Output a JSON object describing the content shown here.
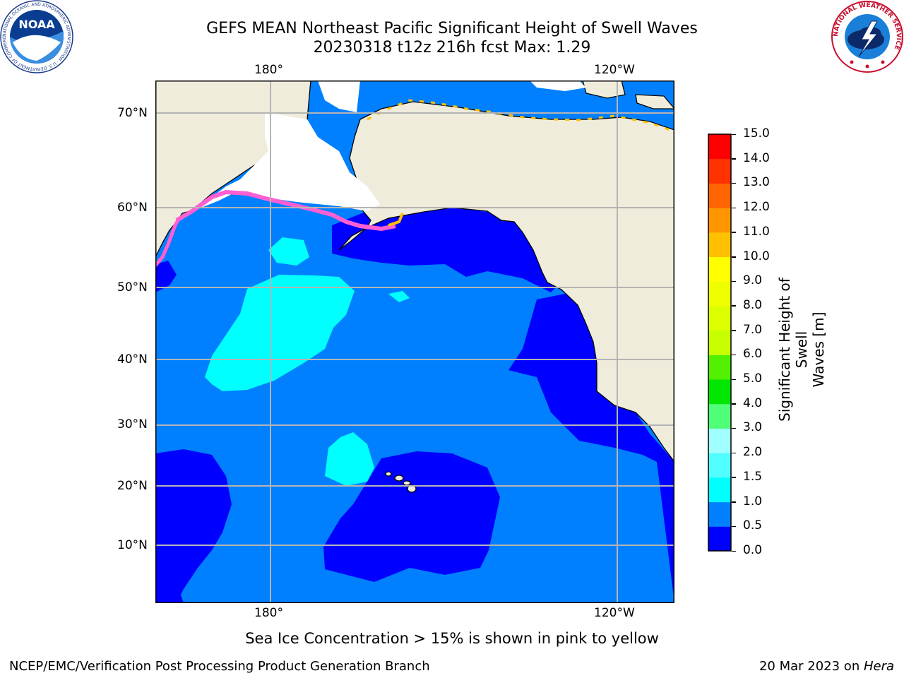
{
  "header": {
    "title_line1": "GEFS MEAN Northeast Pacific Significant Height of Swell Waves",
    "title_line2": "20230318 t12z 216h fcst   Max: 1.29"
  },
  "logos": {
    "left": {
      "text": "NOAA",
      "ring_text": "NATIONAL OCEANIC AND ATMOSPHERIC ADMINISTRATION · U.S. DEPARTMENT OF COMMERCE"
    },
    "right": {
      "ring_text": "NATIONAL WEATHER SERVICE"
    }
  },
  "map": {
    "lon_labels_top": [
      "180°",
      "120°W"
    ],
    "lon_labels_bottom": [
      "180°",
      "120°W"
    ],
    "lat_labels": [
      "70°N",
      "60°N",
      "50°N",
      "40°N",
      "30°N",
      "20°N",
      "10°N"
    ],
    "colors": {
      "land": "#efecdc",
      "ice_free": "#ffffff",
      "grid": "#b4b4b4",
      "ice_edge": "#ff5fd2",
      "ice_yellow": "#ffc000"
    }
  },
  "colorbar": {
    "label": "Significant Height of Swell Waves [m]",
    "label_line1": "Significant Height of Swell",
    "label_line2": "Waves [m]",
    "ticks": [
      "15.0",
      "14.0",
      "13.0",
      "12.0",
      "11.0",
      "10.0",
      "9.0",
      "8.0",
      "7.0",
      "6.0",
      "5.0",
      "4.0",
      "3.0",
      "2.0",
      "1.5",
      "1.0",
      "0.5",
      "0.0"
    ],
    "bins": [
      {
        "lo": 0.0,
        "hi": 0.5,
        "color": "#0000ff"
      },
      {
        "lo": 0.5,
        "hi": 1.0,
        "color": "#0080ff"
      },
      {
        "lo": 1.0,
        "hi": 1.5,
        "color": "#00ffff"
      },
      {
        "lo": 1.5,
        "hi": 2.0,
        "color": "#50ffff"
      },
      {
        "lo": 2.0,
        "hi": 3.0,
        "color": "#a0ffff"
      },
      {
        "lo": 3.0,
        "hi": 4.0,
        "color": "#50ff78"
      },
      {
        "lo": 4.0,
        "hi": 5.0,
        "color": "#00e600"
      },
      {
        "lo": 5.0,
        "hi": 6.0,
        "color": "#50f000"
      },
      {
        "lo": 6.0,
        "hi": 7.0,
        "color": "#c8ff00"
      },
      {
        "lo": 7.0,
        "hi": 8.0,
        "color": "#dcff00"
      },
      {
        "lo": 8.0,
        "hi": 9.0,
        "color": "#f0ff00"
      },
      {
        "lo": 9.0,
        "hi": 10.0,
        "color": "#ffff00"
      },
      {
        "lo": 10.0,
        "hi": 11.0,
        "color": "#ffc000"
      },
      {
        "lo": 11.0,
        "hi": 12.0,
        "color": "#ff9600"
      },
      {
        "lo": 12.0,
        "hi": 13.0,
        "color": "#ff6400"
      },
      {
        "lo": 13.0,
        "hi": 14.0,
        "color": "#ff3200"
      },
      {
        "lo": 14.0,
        "hi": 15.0,
        "color": "#ff0000"
      }
    ]
  },
  "notes": {
    "sea_ice": "Sea Ice Concentration > 15% is shown in pink to yellow"
  },
  "footer": {
    "left": "NCEP/EMC/Verification Post Processing Product Generation Branch",
    "date": "20 Mar 2023 on ",
    "machine": "Hera"
  }
}
